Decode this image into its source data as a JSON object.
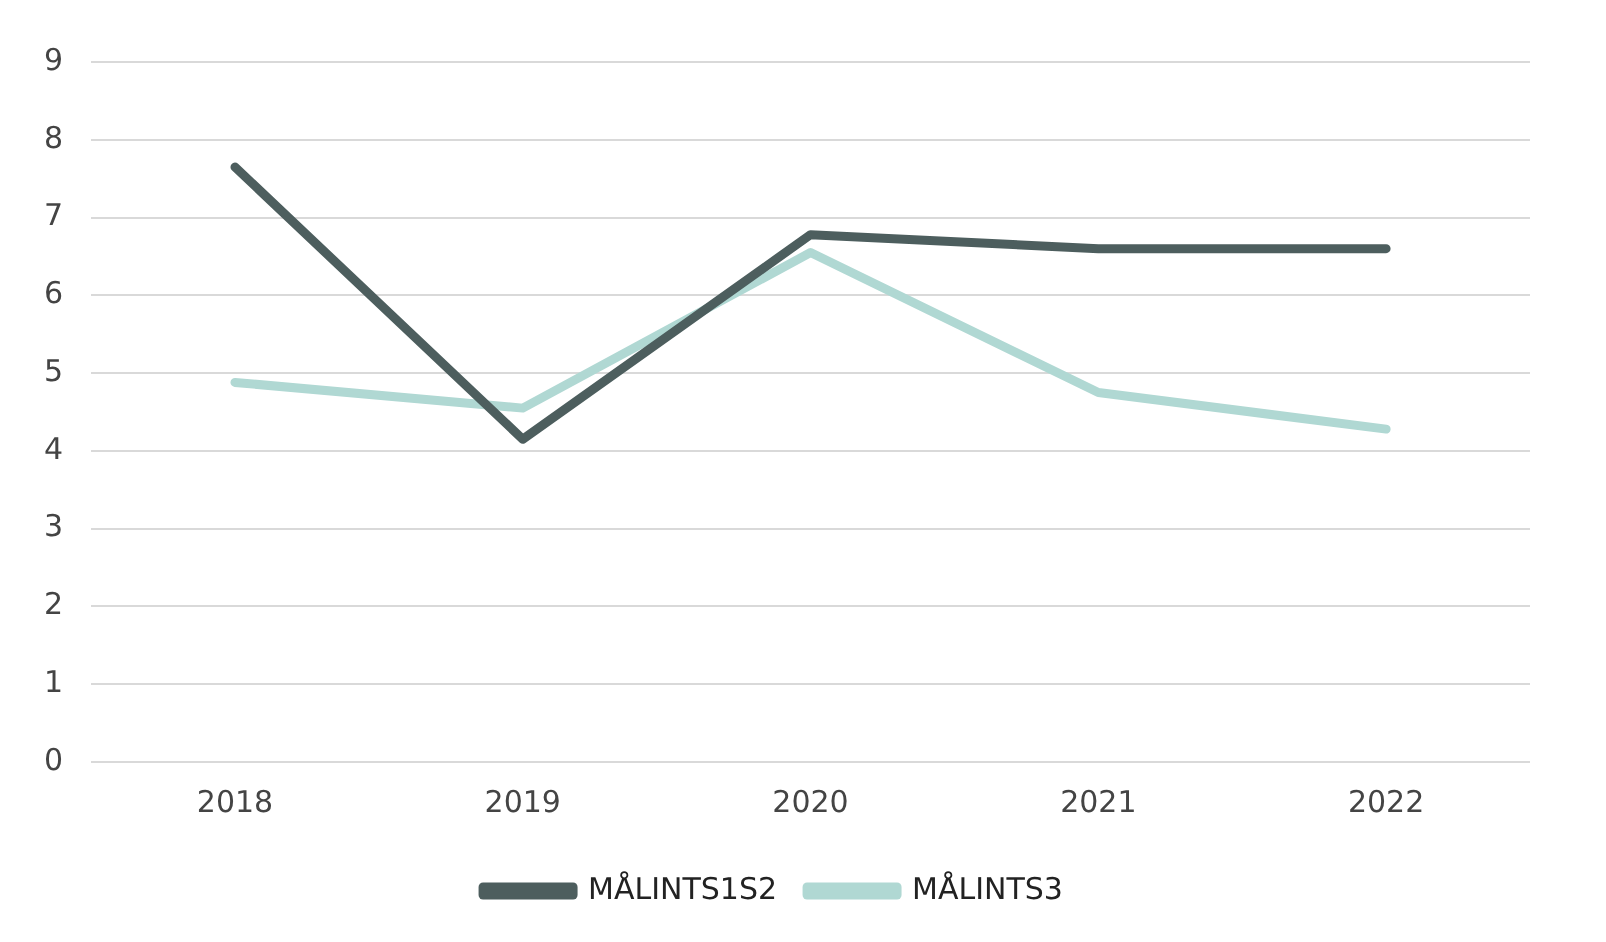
{
  "chart_data": {
    "type": "line",
    "categories": [
      "2018",
      "2019",
      "2020",
      "2021",
      "2022"
    ],
    "series": [
      {
        "name": "MÅLINTS1S2",
        "color": "#4d5e5e",
        "values": [
          7.65,
          4.15,
          6.78,
          6.6,
          6.6
        ]
      },
      {
        "name": "MÅLINTS3",
        "color": "#b0d8d3",
        "values": [
          4.88,
          4.55,
          6.55,
          4.75,
          4.28
        ]
      }
    ],
    "ylim": [
      0,
      9
    ],
    "yticks": [
      0,
      1,
      2,
      3,
      4,
      5,
      6,
      7,
      8,
      9
    ],
    "grid": "y",
    "legend": "bottom",
    "marker": "none",
    "line_style": "solid"
  }
}
